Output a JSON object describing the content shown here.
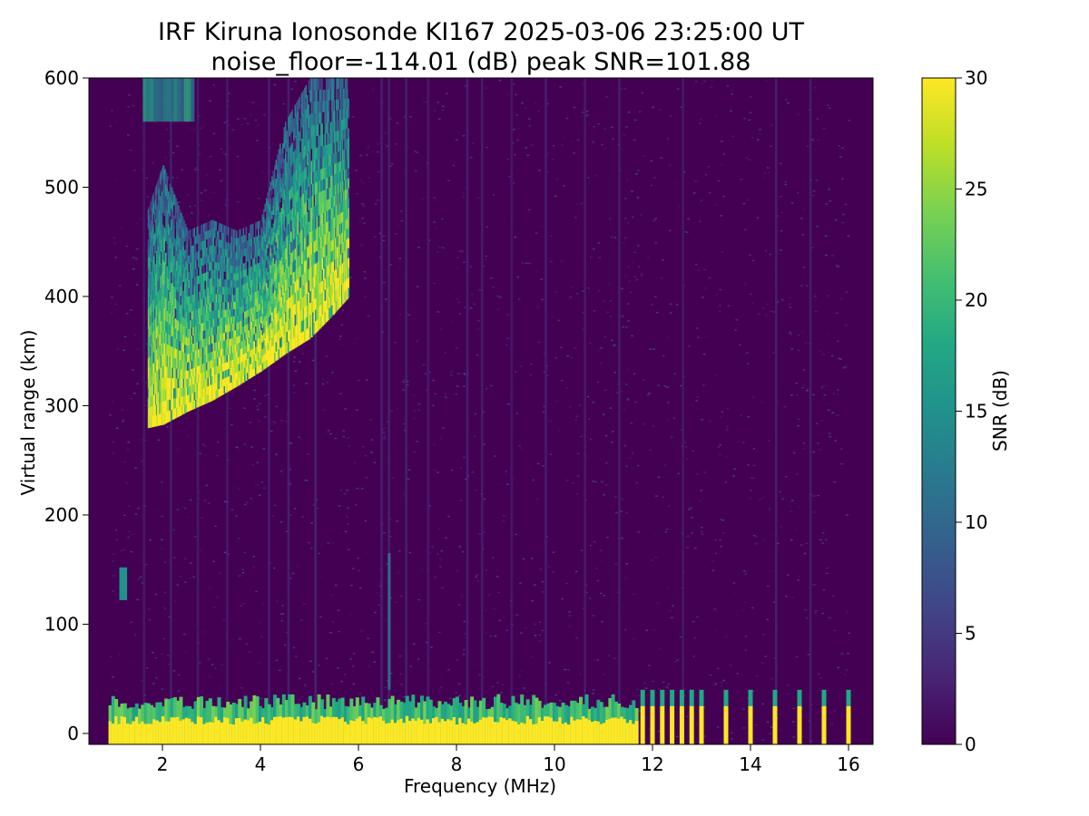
{
  "chart_data": {
    "type": "heatmap",
    "title": "IRF Kiruna Ionosonde KI167 2025-03-06 23:25:00  UT",
    "subtitle": "noise_floor=-114.01 (dB) peak SNR=101.88",
    "xlabel": "Frequency (MHz)",
    "ylabel": "Virtual range (km)",
    "xlim": [
      0.5,
      16.5
    ],
    "ylim": [
      -10,
      600
    ],
    "xticks": [
      2,
      4,
      6,
      8,
      10,
      12,
      14,
      16
    ],
    "yticks": [
      0,
      100,
      200,
      300,
      400,
      500,
      600
    ],
    "grid": false,
    "colormap": "viridis",
    "colorbar": {
      "label": "SNR (dB)",
      "range": [
        0,
        30
      ],
      "ticks": [
        0,
        5,
        10,
        15,
        20,
        25,
        30
      ]
    },
    "noise_floor_db": -114.01,
    "peak_snr_db": 101.88,
    "data_freq_range_mhz": [
      0.9,
      16.0
    ],
    "f_layer_trace": {
      "description": "F-layer echo trace",
      "points": [
        {
          "freq": 1.7,
          "range": 280,
          "top": 480
        },
        {
          "freq": 2.0,
          "range": 283,
          "top": 520
        },
        {
          "freq": 2.5,
          "range": 295,
          "top": 460
        },
        {
          "freq": 3.0,
          "range": 305,
          "top": 470
        },
        {
          "freq": 3.5,
          "range": 318,
          "top": 460
        },
        {
          "freq": 4.0,
          "range": 332,
          "top": 470
        },
        {
          "freq": 4.5,
          "range": 348,
          "top": 560
        },
        {
          "freq": 5.0,
          "range": 362,
          "top": 600
        },
        {
          "freq": 5.5,
          "range": 385,
          "top": 600
        },
        {
          "freq": 5.8,
          "range": 400,
          "top": 600
        }
      ]
    },
    "ground_echo_band": {
      "range_min": -10,
      "range_max": 30,
      "freq_min": 0.9,
      "freq_max": 11.7
    },
    "tone_lines_mhz": [
      11.8,
      12.0,
      12.2,
      12.4,
      12.6,
      12.8,
      13.0,
      13.5,
      14.0,
      14.5,
      15.0,
      15.5,
      16.0
    ]
  },
  "colors": {
    "background": "#ffffff",
    "axes_edge": "#000000",
    "viridis_low": "#440154",
    "viridis_high": "#fde725"
  }
}
